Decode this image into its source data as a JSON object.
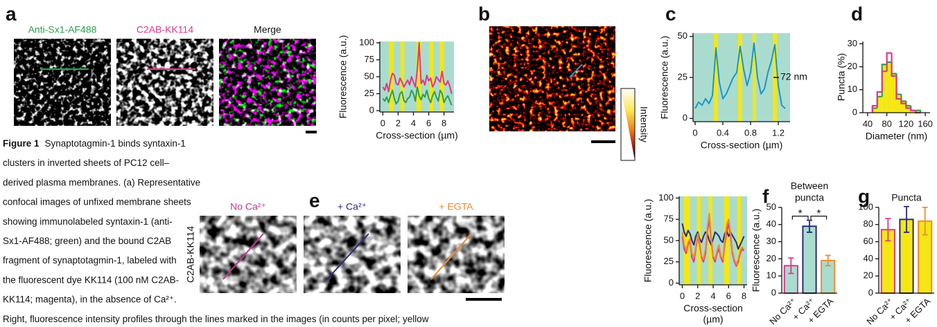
{
  "panel_labels": [
    "a",
    "b",
    "c",
    "d",
    "e",
    "f",
    "g"
  ],
  "image_labels": {
    "a": [
      "Anti-Sx1-AF488",
      "C2AB-KK114",
      "Merge"
    ],
    "e": [
      "No Ca²⁺",
      "+ Ca²⁺",
      "+ EGTA"
    ],
    "e_side": "C2AB-KK114"
  },
  "colorbar_label": "Intensity",
  "caption": {
    "label": "Figure 1",
    "lines": [
      "Synaptotagmin-1 binds syntaxin-1",
      "clusters in inverted sheets of PC12 cell–",
      "derived plasma membranes. (a) Representative",
      "confocal images of unfixed membrane sheets",
      "showing immunolabeled syntaxin-1 (anti-",
      "Sx1-AF488; green) and the bound C2AB",
      "fragment of synaptotagmin-1, labeled with",
      "the fluorescent dye KK114 (100 nM C2AB-",
      "KK114; magenta), in the absence of Ca²⁺.",
      "Right, fluorescence intensity profiles through the lines marked in the images (in counts per pixel; yellow"
    ]
  },
  "chart_data": [
    {
      "type": "line",
      "ylabel": "Fluorescence (a.u.)",
      "xlabel": "Cross-section (µm)",
      "x": [
        0,
        0.25,
        0.5,
        0.75,
        1,
        1.25,
        1.5,
        1.75,
        2,
        2.25,
        2.5,
        2.75,
        3,
        3.25,
        3.5,
        3.75,
        4,
        4.25,
        4.5,
        4.75,
        5,
        5.25,
        5.5,
        5.75,
        6,
        6.25,
        6.5,
        6.75,
        7,
        7.25,
        7.5,
        7.75,
        8,
        8.25,
        8.5,
        8.75,
        9
      ],
      "series": [
        {
          "color": "#e0368c",
          "values": [
            35,
            30,
            40,
            28,
            45,
            55,
            52,
            40,
            38,
            48,
            42,
            35,
            40,
            45,
            38,
            50,
            42,
            35,
            60,
            100,
            40,
            45,
            38,
            52,
            44,
            48,
            35,
            40,
            50,
            46,
            42,
            58,
            40,
            38,
            44,
            36,
            25
          ]
        },
        {
          "color": "#2e9e4b",
          "values": [
            18,
            14,
            20,
            12,
            22,
            30,
            18,
            10,
            14,
            25,
            28,
            15,
            12,
            18,
            20,
            30,
            25,
            14,
            35,
            22,
            16,
            24,
            20,
            30,
            18,
            12,
            22,
            28,
            20,
            14,
            30,
            25,
            12,
            18,
            22,
            15,
            8
          ]
        }
      ],
      "bands": [
        [
          0.8,
          1.4
        ],
        [
          2.3,
          2.8
        ],
        [
          4.4,
          5.0
        ],
        [
          6.1,
          6.6
        ],
        [
          7.4,
          8.0
        ]
      ],
      "band_color": "#f4e714",
      "background": "#a9dccf",
      "xlim": [
        -0.4,
        9.3
      ],
      "ylim": [
        -2,
        102
      ],
      "xticks": [
        0,
        2,
        4,
        6,
        8
      ],
      "yticks": [
        0,
        25,
        50,
        75,
        100
      ]
    },
    {
      "type": "line",
      "ylabel": "Fluorescence (a.u.)",
      "xlabel": "Cross-section (µm)",
      "annotation": "72 nm",
      "x": [
        0,
        0.05,
        0.1,
        0.15,
        0.2,
        0.25,
        0.3,
        0.35,
        0.4,
        0.45,
        0.5,
        0.55,
        0.6,
        0.65,
        0.7,
        0.75,
        0.8,
        0.85,
        0.9,
        0.95,
        1,
        1.05,
        1.1,
        1.15,
        1.2,
        1.25,
        1.3
      ],
      "series": [
        {
          "color": "#1b96c8",
          "values": [
            6,
            10,
            8,
            12,
            9,
            14,
            43,
            22,
            12,
            15,
            20,
            25,
            28,
            44,
            30,
            20,
            28,
            46,
            25,
            15,
            18,
            28,
            35,
            45,
            20,
            8,
            6
          ]
        }
      ],
      "bands": [
        [
          0.27,
          0.33
        ],
        [
          0.62,
          0.68
        ],
        [
          0.83,
          0.88
        ],
        [
          1.12,
          1.18
        ]
      ],
      "band_color": "#f4e714",
      "background": "#a9dccf",
      "xlim": [
        -0.03,
        1.37
      ],
      "ylim": [
        -2,
        52
      ],
      "xticks": [
        0,
        0.4,
        0.8,
        1.2
      ],
      "yticks": [
        0,
        25,
        50
      ]
    },
    {
      "type": "histogram",
      "ylabel": "Puncta (%)",
      "xlabel": "Diameter (nm)",
      "bins": [
        50,
        60,
        70,
        80,
        90,
        100,
        110,
        120,
        130,
        140,
        150
      ],
      "series": [
        {
          "color": "#2e9e4b",
          "fill": "#f4e714",
          "values": [
            2,
            7,
            21,
            22,
            17,
            8,
            5,
            3,
            1,
            1
          ]
        },
        {
          "color": "#e0368c",
          "values": [
            3,
            9,
            18,
            26,
            16,
            6,
            4,
            2,
            1,
            0
          ]
        }
      ],
      "xlim": [
        30,
        170
      ],
      "ylim": [
        0,
        31
      ],
      "xticks": [
        40,
        80,
        120,
        160
      ],
      "yticks": [
        0,
        10,
        20,
        30
      ]
    },
    {
      "type": "line",
      "ylabel": "Fluorescence (a.u.)",
      "xlabel": [
        "Cross-section",
        "(µm)"
      ],
      "x": [
        0,
        0.25,
        0.5,
        0.75,
        1,
        1.25,
        1.5,
        1.75,
        2,
        2.25,
        2.5,
        2.75,
        3,
        3.25,
        3.5,
        3.75,
        4,
        4.25,
        4.5,
        4.75,
        5,
        5.25,
        5.5,
        5.75,
        6,
        6.25,
        6.5,
        6.75,
        7,
        7.25,
        7.5,
        7.75,
        8
      ],
      "series": [
        {
          "color": "#2b2a7a",
          "values": [
            70,
            60,
            55,
            62,
            58,
            50,
            45,
            55,
            60,
            52,
            48,
            55,
            60,
            58,
            50,
            45,
            52,
            60,
            58,
            55,
            50,
            48,
            58,
            62,
            55,
            60,
            56,
            52,
            48,
            40,
            45,
            50,
            55
          ]
        },
        {
          "color": "#e0368c",
          "values": [
            55,
            40,
            35,
            45,
            50,
            30,
            25,
            40,
            55,
            45,
            30,
            25,
            35,
            60,
            75,
            50,
            30,
            25,
            35,
            40,
            30,
            25,
            45,
            60,
            70,
            55,
            35,
            25,
            20,
            25,
            35,
            40,
            38
          ]
        },
        {
          "color": "#f08c2e",
          "values": [
            60,
            45,
            38,
            48,
            52,
            35,
            30,
            42,
            58,
            48,
            32,
            28,
            40,
            65,
            82,
            55,
            32,
            28,
            38,
            45,
            32,
            28,
            50,
            68,
            75,
            60,
            38,
            28,
            22,
            28,
            38,
            42,
            40
          ]
        }
      ],
      "bands": [
        [
          0.2,
          1.0
        ],
        [
          1.9,
          2.4
        ],
        [
          3.4,
          3.9
        ],
        [
          5.4,
          6.1
        ],
        [
          7.1,
          7.6
        ]
      ],
      "band_color": "#f4e714",
      "background": "#a9dccf",
      "xlim": [
        -0.4,
        8.4
      ],
      "ylim": [
        -2,
        102
      ],
      "xticks": [
        0,
        2,
        4,
        6,
        8
      ],
      "yticks": [
        0,
        25,
        50,
        75,
        100
      ]
    },
    {
      "type": "bar",
      "title": [
        "Between",
        "puncta"
      ],
      "ylabel": "Fluorescence (a.u.)",
      "categories": [
        "No Ca²⁺",
        "+ Ca²⁺",
        "+ EGTA"
      ],
      "values": [
        16,
        39,
        19
      ],
      "errors": [
        4.5,
        3.5,
        3
      ],
      "color": "#a9dccf",
      "edge_colors": [
        "#e0368c",
        "#2b2a7a",
        "#f08c2e"
      ],
      "significance": [
        "*",
        "*"
      ],
      "ylim": [
        0,
        50
      ],
      "yticks": [
        0,
        10,
        20,
        30,
        40,
        50
      ]
    },
    {
      "type": "bar",
      "title": [
        "Puncta"
      ],
      "categories": [
        "No Ca²⁺",
        "+ Ca²⁺",
        "+ EGTA"
      ],
      "values": [
        74,
        86,
        84
      ],
      "errors": [
        13,
        15,
        16
      ],
      "color": "#f4e714",
      "edge_colors": [
        "#e0368c",
        "#2b2a7a",
        "#f08c2e"
      ],
      "ylim": [
        0,
        100
      ],
      "yticks": [
        0,
        20,
        40,
        60,
        80,
        100
      ]
    }
  ]
}
